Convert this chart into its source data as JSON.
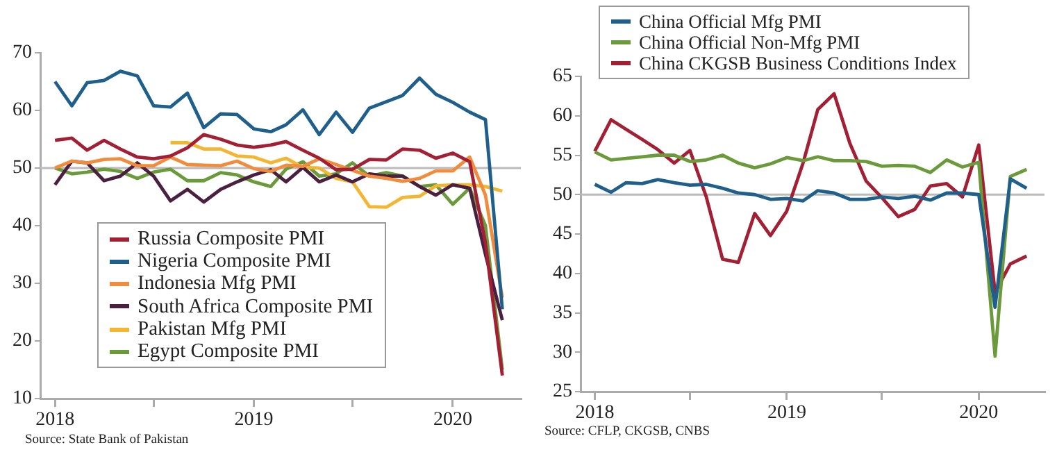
{
  "chart_data": [
    {
      "type": "line",
      "x": [
        "2018-01",
        "2018-02",
        "2018-03",
        "2018-04",
        "2018-05",
        "2018-06",
        "2018-07",
        "2018-08",
        "2018-09",
        "2018-10",
        "2018-11",
        "2018-12",
        "2019-01",
        "2019-02",
        "2019-03",
        "2019-04",
        "2019-05",
        "2019-06",
        "2019-07",
        "2019-08",
        "2019-09",
        "2019-10",
        "2019-11",
        "2019-12",
        "2020-01",
        "2020-02",
        "2020-03",
        "2020-04"
      ],
      "series": [
        {
          "name": "Russia Composite PMI",
          "color": "#a31f34",
          "values": [
            54.8,
            55.2,
            53.1,
            54.8,
            53.3,
            51.9,
            51.6,
            52.1,
            53.5,
            55.8,
            55,
            54,
            53.6,
            54,
            54.6,
            53.1,
            51.7,
            49.7,
            49.8,
            51.5,
            51.4,
            53.3,
            53.1,
            51.7,
            52.6,
            51.1,
            37,
            14
          ]
        },
        {
          "name": "Nigeria Composite PMI",
          "color": "#1f5f8b",
          "values": [
            65,
            60.8,
            64.8,
            65.2,
            66.8,
            66,
            60.8,
            60.6,
            63,
            57,
            59.4,
            59.3,
            56.8,
            56.3,
            57.5,
            60.1,
            55.8,
            59.7,
            56.2,
            60.4,
            61.5,
            62.6,
            65.6,
            62.8,
            61.4,
            59.7,
            58.4,
            25.5
          ]
        },
        {
          "name": "Indonesia Mfg PMI",
          "color": "#f08c3c",
          "values": [
            50,
            51.2,
            50.9,
            51.5,
            51.6,
            50.4,
            50.4,
            51.9,
            50.6,
            50.5,
            50.4,
            51.2,
            49.9,
            49.4,
            50.5,
            50.3,
            51.6,
            50.6,
            49.6,
            48.6,
            48.2,
            47.7,
            48.2,
            49.5,
            49.5,
            51.9,
            45.3,
            27.5
          ]
        },
        {
          "name": "South Africa Composite PMI",
          "color": "#4b1f3f",
          "values": [
            47.1,
            51.2,
            50.9,
            47.8,
            48.6,
            50.9,
            48.6,
            44.3,
            46.3,
            44.1,
            46.3,
            47.6,
            48.8,
            49.7,
            47.6,
            50.1,
            47.6,
            48.8,
            47.6,
            49,
            48.6,
            48.6,
            46.8,
            45.3,
            47.1,
            46.5,
            35,
            23.6
          ]
        },
        {
          "name": "Pakistan Mfg PMI",
          "color": "#f2b632",
          "values": [
            null,
            null,
            null,
            null,
            null,
            null,
            null,
            54.4,
            54.4,
            53.3,
            53.3,
            52.1,
            51.9,
            50.9,
            51.7,
            50.1,
            50,
            48.2,
            47.6,
            43.3,
            43.2,
            44.9,
            45.1,
            46.9,
            47.1,
            47.1,
            46.8,
            46
          ]
        },
        {
          "name": "Egypt Composite PMI",
          "color": "#6b9a3a",
          "values": [
            50,
            49,
            49.3,
            49.8,
            49.4,
            48.2,
            49.3,
            49.8,
            47.8,
            47.8,
            49.2,
            48.8,
            47.6,
            46.8,
            49.8,
            51.1,
            48.6,
            49,
            50.9,
            48.6,
            49.2,
            48.6,
            46.8,
            47.1,
            43.7,
            46.5,
            40,
            15
          ]
        }
      ],
      "xlim": [
        "2017-12-05",
        "2020-05-05"
      ],
      "xticks": [
        "2018",
        {
          "value": "2018-07",
          "label": null
        },
        "2019",
        {
          "value": "2019-07",
          "label": null
        },
        "2020"
      ],
      "ylim": [
        10,
        70
      ],
      "yticks": [
        10,
        20,
        30,
        40,
        50,
        60,
        70
      ],
      "ref_lines": [
        {
          "axis": "y",
          "value": 50,
          "color": "#bbbbbb"
        }
      ],
      "legend": "bottom left",
      "grid": false,
      "annotations": [
        "Source:  State Bank of Pakistan"
      ]
    },
    {
      "type": "line",
      "x": [
        "2018-01",
        "2018-02",
        "2018-03",
        "2018-04",
        "2018-05",
        "2018-06",
        "2018-07",
        "2018-08",
        "2018-09",
        "2018-10",
        "2018-11",
        "2018-12",
        "2019-01",
        "2019-02",
        "2019-03",
        "2019-04",
        "2019-05",
        "2019-06",
        "2019-07",
        "2019-08",
        "2019-09",
        "2019-10",
        "2019-11",
        "2019-12",
        "2020-01",
        "2020-02",
        "2020-03",
        "2020-04"
      ],
      "series": [
        {
          "name": "China Official Mfg PMI",
          "color": "#1f5f8b",
          "values": [
            51.3,
            50.3,
            51.5,
            51.4,
            51.9,
            51.5,
            51.2,
            51.3,
            50.8,
            50.2,
            50,
            49.4,
            49.5,
            49.2,
            50.5,
            50.2,
            49.4,
            49.4,
            49.7,
            49.5,
            49.8,
            49.3,
            50.2,
            50.2,
            50,
            35.7,
            52,
            50.8
          ]
        },
        {
          "name": "China Official Non-Mfg PMI",
          "color": "#6b9a3a",
          "values": [
            55.4,
            54.4,
            54.6,
            54.8,
            55,
            55,
            54.2,
            54.4,
            55,
            54,
            53.4,
            53.9,
            54.7,
            54.3,
            54.8,
            54.3,
            54.3,
            54.2,
            53.6,
            53.7,
            53.6,
            52.8,
            54.4,
            53.5,
            54.1,
            29.5,
            52.3,
            53.2
          ]
        },
        {
          "name": "China CKGSB Business Conditions Index",
          "color": "#a31f34",
          "values": [
            55.5,
            59.5,
            58.3,
            57,
            55.7,
            54,
            55.6,
            49.7,
            41.8,
            41.4,
            47.6,
            44.8,
            47.9,
            54,
            60.8,
            62.8,
            56.5,
            51.7,
            49.6,
            47.2,
            48.1,
            51.1,
            51.4,
            49.7,
            56.3,
            37.6,
            41.2,
            42.2
          ]
        }
      ],
      "xlim": [
        "2017-12-05",
        "2020-05-05"
      ],
      "xticks": [
        "2018",
        {
          "value": "2018-07",
          "label": null
        },
        "2019",
        {
          "value": "2019-07",
          "label": null
        },
        "2020"
      ],
      "ylim": [
        25,
        65
      ],
      "yticks": [
        25,
        30,
        35,
        40,
        45,
        50,
        55,
        60,
        65
      ],
      "ref_lines": [
        {
          "axis": "y",
          "value": 50,
          "color": "#bbbbbb"
        }
      ],
      "legend": "top left",
      "grid": false,
      "annotations": [
        "Source:  CFLP, CKGSB, CNBS"
      ]
    }
  ]
}
